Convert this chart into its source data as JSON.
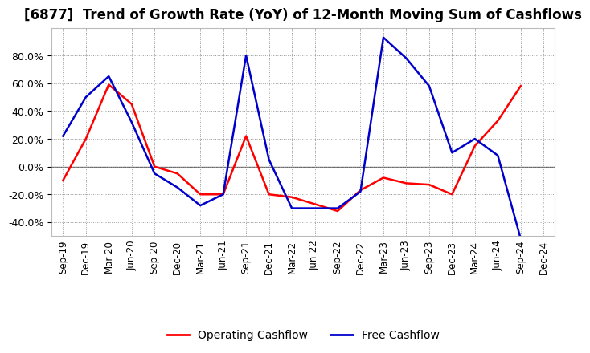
{
  "title": "[6877]  Trend of Growth Rate (YoY) of 12-Month Moving Sum of Cashflows",
  "x_labels": [
    "Sep-19",
    "Dec-19",
    "Mar-20",
    "Jun-20",
    "Sep-20",
    "Dec-20",
    "Mar-21",
    "Jun-21",
    "Sep-21",
    "Dec-21",
    "Mar-22",
    "Jun-22",
    "Sep-22",
    "Dec-22",
    "Mar-23",
    "Jun-23",
    "Sep-23",
    "Dec-23",
    "Mar-24",
    "Jun-24",
    "Sep-24",
    "Dec-24"
  ],
  "operating_cashflow": [
    -10,
    20,
    59,
    45,
    0,
    -5,
    -20,
    -20,
    22,
    -20,
    -22,
    -27,
    -32,
    -17,
    -8,
    -12,
    -13,
    -20,
    15,
    33,
    58,
    null
  ],
  "free_cashflow": [
    22,
    50,
    65,
    32,
    -5,
    -15,
    -28,
    -20,
    80,
    5,
    -30,
    -30,
    -30,
    -18,
    93,
    78,
    58,
    10,
    20,
    8,
    -52,
    null
  ],
  "operating_color": "#ff0000",
  "free_color": "#0000cc",
  "ylim": [
    -50,
    100
  ],
  "yticks": [
    -40,
    -20,
    0,
    20,
    40,
    60,
    80
  ],
  "background_color": "#ffffff",
  "plot_bg_color": "#ffffff",
  "grid_color": "#999999",
  "title_fontsize": 12,
  "legend_labels": [
    "Operating Cashflow",
    "Free Cashflow"
  ]
}
